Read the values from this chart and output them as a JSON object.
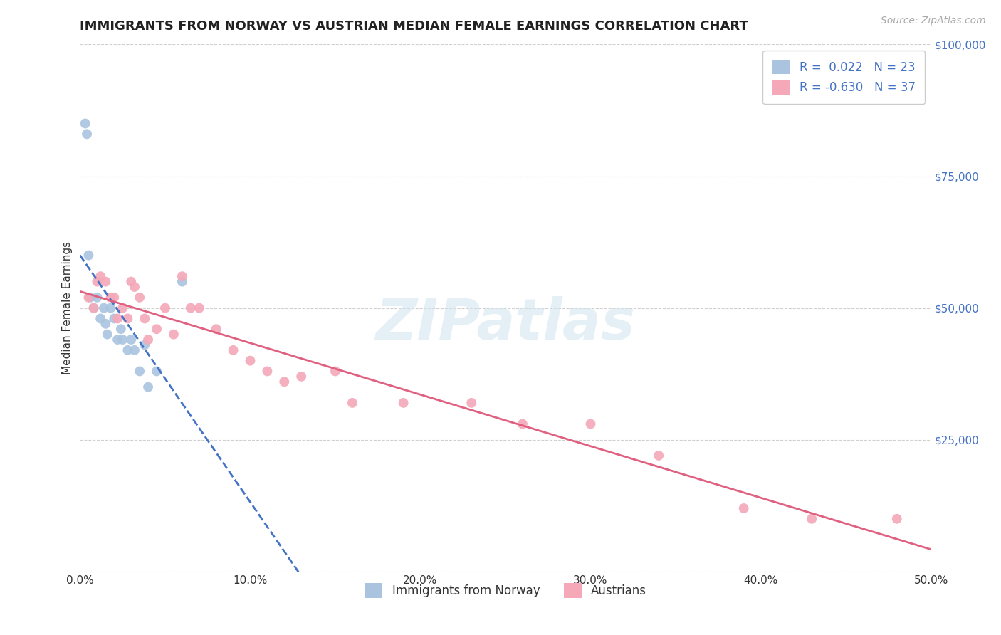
{
  "title": "IMMIGRANTS FROM NORWAY VS AUSTRIAN MEDIAN FEMALE EARNINGS CORRELATION CHART",
  "source": "Source: ZipAtlas.com",
  "ylabel": "Median Female Earnings",
  "xlim": [
    0.0,
    0.5
  ],
  "ylim": [
    0,
    100000
  ],
  "yticks": [
    0,
    25000,
    50000,
    75000,
    100000
  ],
  "right_ytick_labels": [
    "",
    "$25,000",
    "$50,000",
    "$75,000",
    "$100,000"
  ],
  "left_ytick_labels": [
    "",
    "",
    "",
    "",
    ""
  ],
  "xticks": [
    0.0,
    0.1,
    0.2,
    0.3,
    0.4,
    0.5
  ],
  "xtick_labels": [
    "0.0%",
    "10.0%",
    "20.0%",
    "30.0%",
    "40.0%",
    "50.0%"
  ],
  "background_color": "#ffffff",
  "grid_color": "#d0d0d0",
  "norway_color": "#aac4e0",
  "austria_color": "#f4a8b8",
  "norway_line_color": "#4472c4",
  "austria_line_color": "#e06080",
  "norway_R": 0.022,
  "norway_N": 23,
  "austria_R": -0.63,
  "austria_N": 37,
  "norway_scatter_x": [
    0.003,
    0.004,
    0.005,
    0.006,
    0.008,
    0.01,
    0.012,
    0.014,
    0.015,
    0.016,
    0.018,
    0.02,
    0.022,
    0.024,
    0.025,
    0.028,
    0.03,
    0.032,
    0.035,
    0.038,
    0.04,
    0.045,
    0.06
  ],
  "norway_scatter_y": [
    85000,
    83000,
    60000,
    52000,
    50000,
    52000,
    48000,
    50000,
    47000,
    45000,
    50000,
    48000,
    44000,
    46000,
    44000,
    42000,
    44000,
    42000,
    38000,
    43000,
    35000,
    38000,
    55000
  ],
  "austria_scatter_x": [
    0.005,
    0.008,
    0.01,
    0.012,
    0.015,
    0.018,
    0.02,
    0.022,
    0.025,
    0.028,
    0.03,
    0.032,
    0.035,
    0.038,
    0.04,
    0.045,
    0.05,
    0.055,
    0.06,
    0.065,
    0.07,
    0.08,
    0.09,
    0.1,
    0.11,
    0.12,
    0.13,
    0.15,
    0.16,
    0.19,
    0.23,
    0.26,
    0.3,
    0.34,
    0.39,
    0.43,
    0.48
  ],
  "austria_scatter_y": [
    52000,
    50000,
    55000,
    56000,
    55000,
    52000,
    52000,
    48000,
    50000,
    48000,
    55000,
    54000,
    52000,
    48000,
    44000,
    46000,
    50000,
    45000,
    56000,
    50000,
    50000,
    46000,
    42000,
    40000,
    38000,
    36000,
    37000,
    38000,
    32000,
    32000,
    32000,
    28000,
    28000,
    22000,
    12000,
    10000,
    10000
  ],
  "watermark_text": "ZIPatlas",
  "title_fontsize": 13,
  "label_fontsize": 11,
  "tick_fontsize": 11,
  "legend_fontsize": 12,
  "source_fontsize": 10,
  "marker_size": 100
}
